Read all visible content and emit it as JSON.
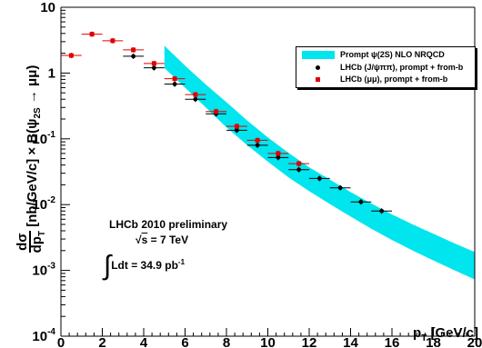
{
  "chart_data": {
    "type": "scatter",
    "x_axis": {
      "label": "p",
      "label_sub": "T",
      "label_unit": " [GeV/c]",
      "range": [
        0,
        20
      ],
      "ticks": [
        0,
        2,
        4,
        6,
        8,
        10,
        12,
        14,
        16,
        18,
        20
      ],
      "tick_labels": [
        "0",
        "2",
        "4",
        "6",
        "8",
        "10",
        "12",
        "14",
        "16",
        "18",
        "20"
      ]
    },
    "y_axis": {
      "scale": "log",
      "range": [
        0.0001,
        10
      ],
      "ticks": [
        10,
        1,
        0.1,
        0.01,
        0.001,
        0.0001
      ],
      "tick_labels": [
        "10",
        "1",
        "10-1",
        "10-2",
        "10-3",
        "10-4"
      ],
      "label_num": "dσ",
      "label_den": "dp",
      "label_den_sub": "T",
      "label_rest": " [nb/GeV/c] × B(ψ",
      "label_psi_sub": "2S",
      "label_end": " → μμ)"
    },
    "legend": {
      "position": "top-right",
      "entries": [
        "Prompt ψ(2S) NLO NRQCD",
        "LHCb (J/ψππ), prompt + from-b",
        "LHCb (μμ), prompt + from-b"
      ]
    },
    "series": [
      {
        "name": "LHCb (J/ψππ), prompt + from-b",
        "color": "#000000",
        "marker": "circle",
        "x": [
          3.5,
          4.5,
          5.5,
          6.5,
          7.5,
          8.5,
          9.5,
          10.5,
          11.5,
          12.5,
          13.5,
          14.5,
          15.5
        ],
        "y": [
          1.8,
          1.2,
          0.68,
          0.4,
          0.24,
          0.135,
          0.08,
          0.052,
          0.034,
          0.025,
          0.018,
          0.011,
          0.008
        ],
        "xerr": 0.5
      },
      {
        "name": "LHCb (μμ), prompt + from-b",
        "color": "#e00000",
        "marker": "square",
        "x": [
          0.5,
          1.5,
          2.5,
          3.5,
          4.5,
          5.5,
          6.5,
          7.5,
          8.5,
          9.5,
          10.5,
          11.5
        ],
        "y": [
          1.85,
          3.9,
          3.1,
          2.25,
          1.4,
          0.82,
          0.47,
          0.26,
          0.155,
          0.095,
          0.06,
          0.042
        ],
        "xerr": 0.5
      }
    ],
    "band": {
      "name": "Prompt ψ(2S) NLO NRQCD",
      "color": "#00e5ee",
      "x": [
        5,
        6,
        7,
        8,
        9,
        10,
        11,
        12,
        13,
        14,
        15,
        16,
        17,
        18,
        19,
        20
      ],
      "y_low": [
        1.2,
        0.6,
        0.3,
        0.15,
        0.08,
        0.045,
        0.026,
        0.016,
        0.0102,
        0.0066,
        0.0043,
        0.0029,
        0.002,
        0.00142,
        0.00101,
        0.00073
      ],
      "y_high": [
        2.6,
        1.3,
        0.67,
        0.36,
        0.19,
        0.105,
        0.061,
        0.037,
        0.024,
        0.0155,
        0.0104,
        0.0071,
        0.005,
        0.0036,
        0.0026,
        0.0019
      ]
    },
    "annotations": {
      "line1": "LHCb 2010 preliminary",
      "line2_prefix": "√",
      "line2_over": "s",
      "line2_rest": " = 7 TeV",
      "line3_int": "∫",
      "line3": "Ldt = 34.9 pb",
      "line3_sup": "-1"
    }
  }
}
